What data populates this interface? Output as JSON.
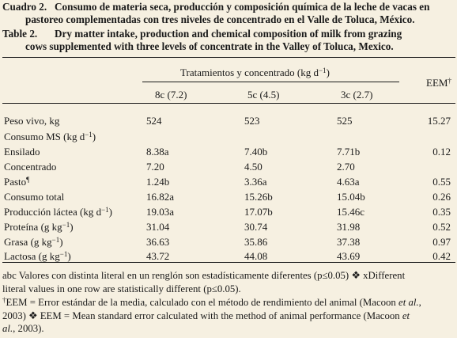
{
  "caption_es": {
    "label": "Cuadro 2.",
    "line1": "Consumo de materia seca, producción y composición química de la leche de vacas en",
    "line2": "pastoreo complementadas con tres niveles de concentrado en el Valle de Toluca, México."
  },
  "caption_en": {
    "label": "Table 2.",
    "line1": "Dry matter intake, production and chemical composition of milk from grazing",
    "line2": "cows supplemented with three levels of concentrate in the Valley of Toluca, Mexico."
  },
  "header": {
    "group": "Tratamientos y concentrado (kg d",
    "group_sup": "−1",
    "group_end": ")",
    "eem": "EEM",
    "eem_sup": "†",
    "cols": [
      "8c (7.2)",
      "5c (4.5)",
      "3c (2.7)"
    ]
  },
  "rows": [
    {
      "label": "Peso vivo, kg",
      "a": "524",
      "b": "523",
      "c": "525",
      "e": "15.27"
    },
    {
      "label": "Consumo MS (kg d",
      "label_sup": "−1",
      "label_end": ")",
      "a": "",
      "b": "",
      "c": "",
      "e": ""
    },
    {
      "label": "Ensilado",
      "a": "8.38a",
      "b": "7.40b",
      "c": "7.71b",
      "e": "0.12"
    },
    {
      "label": "Concentrado",
      "a": "7.20",
      "b": "4.50",
      "c": "2.70",
      "e": ""
    },
    {
      "label": "Pasto",
      "label_sup": "¶",
      "a": "1.24b",
      "b": "3.36a",
      "c": "4.63a",
      "e": "0.55"
    },
    {
      "label": "Consumo total",
      "a": "16.82a",
      "b": "15.26b",
      "c": "15.04b",
      "e": "0.26"
    },
    {
      "label": "Producción láctea (kg d",
      "label_sup": "−1",
      "label_end": ")",
      "a": "19.03a",
      "b": "17.07b",
      "c": "15.46c",
      "e": "0.35"
    },
    {
      "label": "Proteína (g kg",
      "label_sup": "−1",
      "label_end": ")",
      "a": "31.04",
      "b": "30.74",
      "c": "31.98",
      "e": "0.52"
    },
    {
      "label": "Grasa (g kg",
      "label_sup": "−1",
      "label_end": ")",
      "a": "36.63",
      "b": "35.86",
      "c": "37.38",
      "e": "0.97"
    },
    {
      "label": "Lactosa (g kg",
      "label_sup": "−1",
      "label_end": ")",
      "a": "43.72",
      "b": "44.08",
      "c": "43.69",
      "e": "0.42"
    }
  ],
  "footnotes": {
    "abc_1": "abc Valores con distinta literal en un renglón son estadísticamente diferentes (p≤0.05) ❖ xDifferent",
    "abc_2": "literal values in one row are statistically different (p≤0.05).",
    "eem_sup": "†",
    "eem_1": "EEM = Error estándar de la media, calculado con el método de rendimiento del animal (Macoon ",
    "eem_1_it": "et al.",
    "eem_1_end": ",",
    "eem_2a": "2003) ❖ EEM = Mean standard error calculated with the method of animal performance (Macoon ",
    "eem_2_it": "et",
    "eem_3_it": "al.",
    "eem_3_end": ", 2003)."
  }
}
